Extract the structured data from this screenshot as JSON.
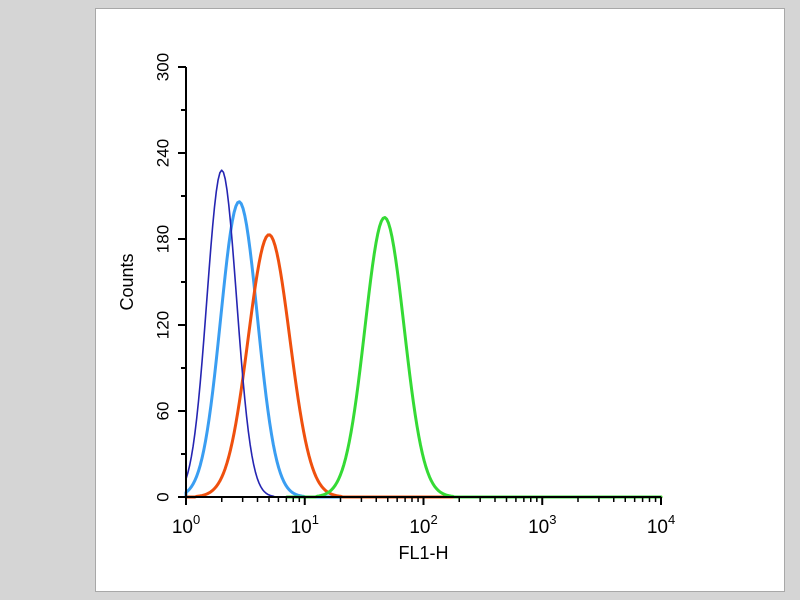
{
  "figure": {
    "kind": "flow-cytometry-histogram"
  },
  "chart_data": {
    "type": "line",
    "title": "",
    "xlabel": "FL1-H",
    "ylabel": "Counts",
    "x_scale": "log10",
    "x_range_log": [
      0,
      4
    ],
    "x_tick_exponents": [
      0,
      1,
      2,
      3,
      4
    ],
    "x_tick_base": "10",
    "ylim": [
      0,
      300
    ],
    "y_major_ticks": [
      0,
      60,
      120,
      180,
      240,
      300
    ],
    "y_minor_step": 30,
    "legend": "none",
    "grid": "off",
    "axis_color": "#000000",
    "background_color": "#ffffff",
    "series": [
      {
        "name": "light-blue",
        "color": "#3a9ef2",
        "line_width": 3,
        "peak_x": 2.8,
        "peak_counts": 206,
        "sigma_log": 0.155,
        "domain_log": [
          0,
          1.6
        ]
      },
      {
        "name": "orange",
        "color": "#ef500e",
        "line_width": 3,
        "peak_x": 5.0,
        "peak_counts": 183,
        "sigma_log": 0.175,
        "domain_log": [
          0,
          4
        ]
      },
      {
        "name": "green",
        "color": "#35da35",
        "line_width": 3,
        "peak_x": 47,
        "peak_counts": 195,
        "sigma_log": 0.165,
        "domain_log": [
          0.85,
          4
        ]
      },
      {
        "name": "dark-blue",
        "color": "#2525b2",
        "line_width": 1.6,
        "peak_x": 2.0,
        "peak_counts": 228,
        "sigma_log": 0.125,
        "domain_log": [
          0,
          1.02
        ]
      }
    ]
  }
}
